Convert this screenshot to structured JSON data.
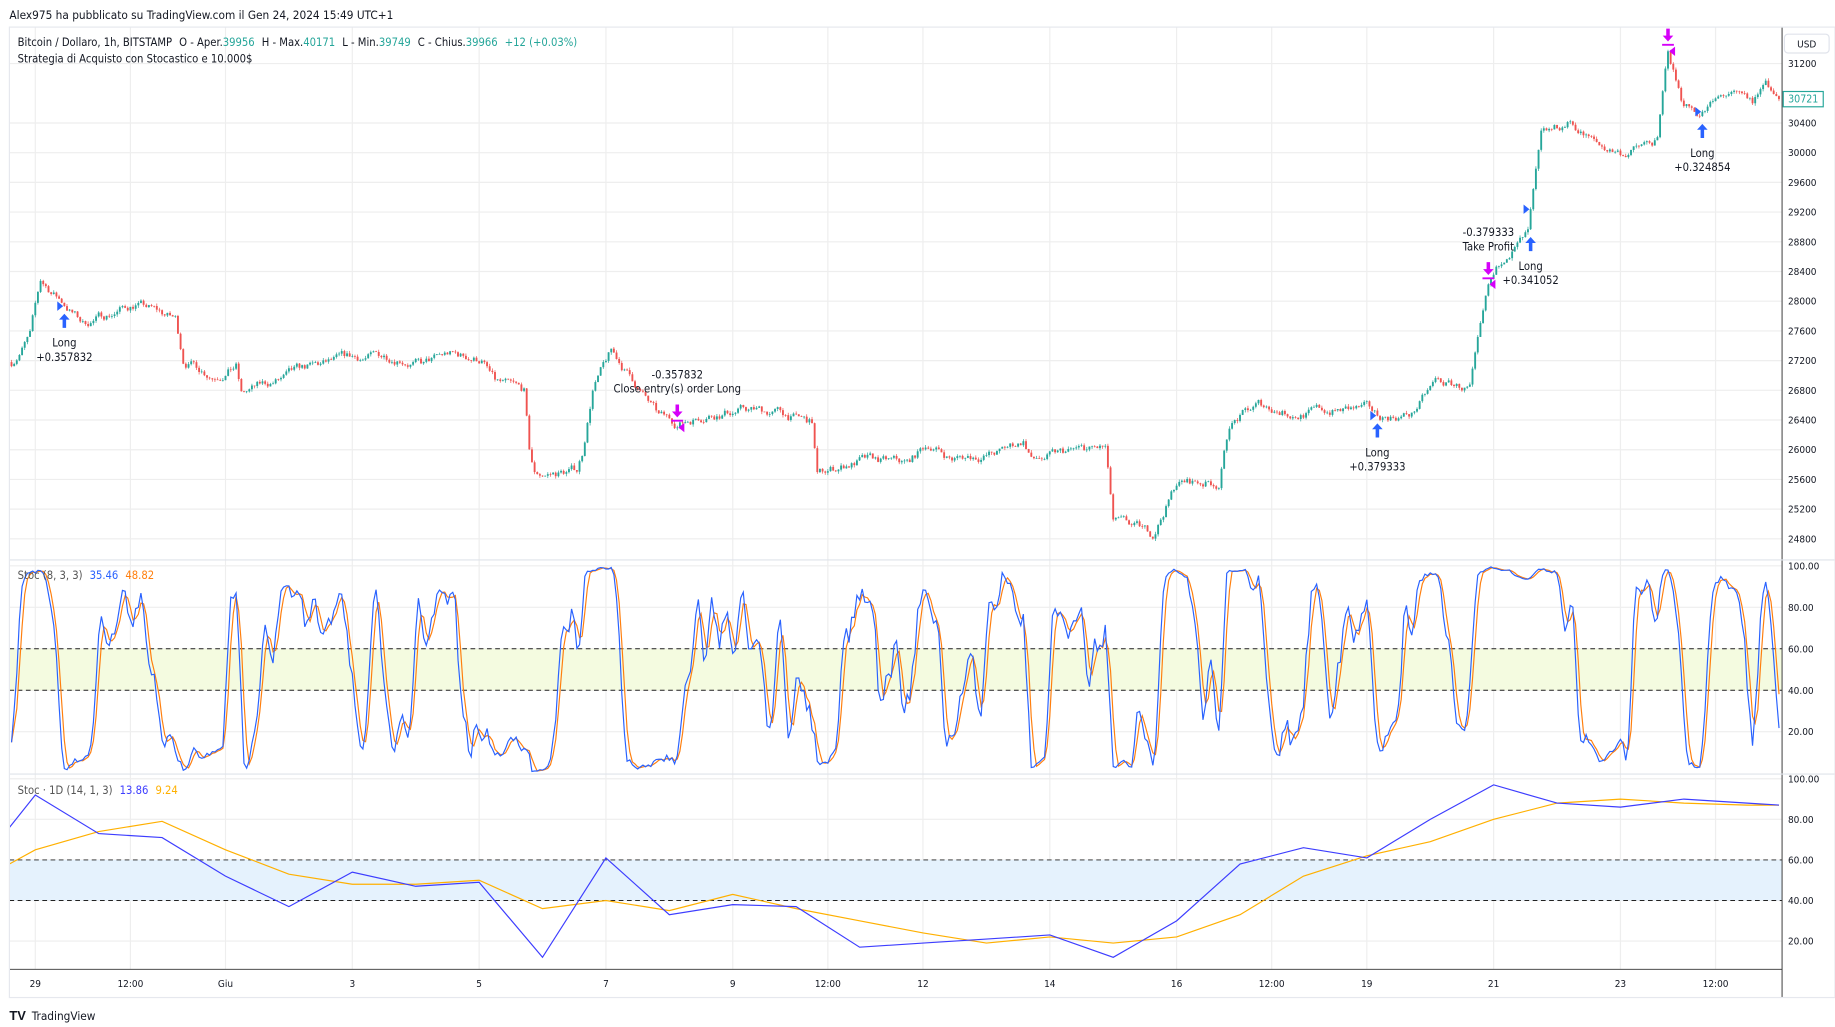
{
  "header": {
    "published": "Alex975 ha pubblicato su TradingView.com il Gen 24, 2024 15:49 UTC+1"
  },
  "legend": {
    "symbol": "Bitcoin / Dollaro, 1h, BITSTAMP",
    "open_label": "O - Aper.",
    "open": "39956",
    "high_label": "H - Max.",
    "high": "40171",
    "low_label": "L - Min.",
    "low": "39749",
    "close_label": "C - Chius.",
    "close": "39966",
    "change": "+12 (+0.03%)",
    "strategy": "Strategia di Acquisto con Stocastico e 10.000$"
  },
  "price_axis": {
    "currency": "USD",
    "last_price": "30721",
    "ticks": [
      "31200",
      "30400",
      "30000",
      "29600",
      "29200",
      "28800",
      "28400",
      "28000",
      "27600",
      "27200",
      "26800",
      "26400",
      "26000",
      "25600",
      "25200",
      "24800"
    ]
  },
  "time_axis": {
    "ticks": [
      {
        "label": "29",
        "time": "05-29 00:00"
      },
      {
        "label": "12:00",
        "time": "05-30 12:00"
      },
      {
        "label": "Giu",
        "time": "06-01 00:00"
      },
      {
        "label": "3",
        "time": "06-03 00:00"
      },
      {
        "label": "5",
        "time": "06-05 00:00"
      },
      {
        "label": "7",
        "time": "06-07 00:00"
      },
      {
        "label": "9",
        "time": "06-09 00:00"
      },
      {
        "label": "12:00",
        "time": "06-10 12:00"
      },
      {
        "label": "12",
        "time": "06-12 00:00"
      },
      {
        "label": "14",
        "time": "06-14 00:00"
      },
      {
        "label": "16",
        "time": "06-16 00:00"
      },
      {
        "label": "12:00",
        "time": "06-17 12:00"
      },
      {
        "label": "19",
        "time": "06-19 00:00"
      },
      {
        "label": "21",
        "time": "06-21 00:00"
      },
      {
        "label": "23",
        "time": "06-23 00:00"
      },
      {
        "label": "12:00",
        "time": "06-24 12:00"
      }
    ]
  },
  "stoch1": {
    "title": "Stoc (8, 3, 3)",
    "k_value": "35.46",
    "d_value": "48.82",
    "ticks": [
      "100.00",
      "80.00",
      "60.00",
      "40.00",
      "20.00"
    ],
    "band": [
      40,
      60
    ]
  },
  "stoch2": {
    "title": "Stoc · 1D (14, 1, 3)",
    "k_value": "13.86",
    "d_value": "9.24",
    "ticks": [
      "100.00",
      "80.00",
      "60.00",
      "40.00",
      "20.00"
    ],
    "band": [
      40,
      60
    ]
  },
  "colors": {
    "up": "#26a69a",
    "down": "#ef5350",
    "k": "#2962ff",
    "d1": "#ff7f0e",
    "k2": "#3d3dff",
    "d2": "#ffb000",
    "band1": "#f4fbe0",
    "band2": "#e5f2fd",
    "long": "#2962ff",
    "exit": "#d500f9",
    "grid": "#eeeeee"
  },
  "footer": {
    "brand": "TradingView"
  },
  "chart_data": [
    {
      "type": "candlestick",
      "title": "Bitcoin / Dollaro, 1h, BITSTAMP",
      "ylim": [
        24600,
        31500
      ],
      "close_path": [
        [
          "05-28 15:00",
          27180
        ],
        [
          "05-28 22:00",
          27540
        ],
        [
          "05-29 02:00",
          28250
        ],
        [
          "05-29 11:00",
          27970
        ],
        [
          "05-29 18:00",
          27700
        ],
        [
          "05-30 14:00",
          27970
        ],
        [
          "05-31 05:00",
          27750
        ],
        [
          "05-31 08:00",
          27220
        ],
        [
          "05-31 19:00",
          27020
        ],
        [
          "06-01 04:00",
          27145
        ],
        [
          "06-01 06:00",
          26750
        ],
        [
          "06-01 22:00",
          26955
        ],
        [
          "06-02 06:00",
          27065
        ],
        [
          "06-03 00:00",
          27220
        ],
        [
          "06-03 18:00",
          27270
        ],
        [
          "06-04 03:00",
          27145
        ],
        [
          "06-04 12:00",
          27270
        ],
        [
          "06-05 01:00",
          27220
        ],
        [
          "06-05 06:00",
          26900
        ],
        [
          "06-05 17:00",
          26750
        ],
        [
          "06-05 19:00",
          25950
        ],
        [
          "06-05 21:00",
          25640
        ],
        [
          "06-06 13:00",
          25720
        ],
        [
          "06-06 15:00",
          25950
        ],
        [
          "06-06 19:00",
          26830
        ],
        [
          "06-07 02:00",
          27300
        ],
        [
          "06-07 11:00",
          26900
        ],
        [
          "06-07 20:00",
          26430
        ],
        [
          "06-08 03:00",
          26350
        ],
        [
          "06-08 14:00",
          26500
        ],
        [
          "06-09 03:00",
          26540
        ],
        [
          "06-09 17:00",
          26500
        ],
        [
          "06-10 06:00",
          26350
        ],
        [
          "06-10 08:00",
          25640
        ],
        [
          "06-10 19:00",
          25800
        ],
        [
          "06-11 00:00",
          25850
        ],
        [
          "06-11 18:00",
          25800
        ],
        [
          "06-12 02:00",
          26070
        ],
        [
          "06-12 11:00",
          25880
        ],
        [
          "06-13 05:00",
          25960
        ],
        [
          "06-13 14:00",
          26120
        ],
        [
          "06-13 18:00",
          25850
        ],
        [
          "06-14 08:00",
          25960
        ],
        [
          "06-14 21:00",
          26005
        ],
        [
          "06-15 00:00",
          25010
        ],
        [
          "06-15 15:00",
          24850
        ],
        [
          "06-16 00:00",
          25560
        ],
        [
          "06-16 16:00",
          25560
        ],
        [
          "06-16 20:00",
          26350
        ],
        [
          "06-17 07:00",
          26590
        ],
        [
          "06-17 20:00",
          26500
        ],
        [
          "06-18 23:00",
          26540
        ],
        [
          "06-19 04:00",
          26430
        ],
        [
          "06-19 17:00",
          26480
        ],
        [
          "06-20 02:00",
          26900
        ],
        [
          "06-20 15:00",
          26820
        ],
        [
          "06-20 22:00",
          28100
        ],
        [
          "06-21 05:00",
          28650
        ],
        [
          "06-21 13:00",
          28890
        ],
        [
          "06-21 18:00",
          30150
        ],
        [
          "06-22 05:00",
          30400
        ],
        [
          "06-22 16:00",
          30080
        ],
        [
          "06-23 01:00",
          30000
        ],
        [
          "06-23 14:00",
          30150
        ],
        [
          "06-23 18:00",
          31340
        ],
        [
          "06-23 23:00",
          30710
        ],
        [
          "06-24 06:00",
          30550
        ],
        [
          "06-24 17:00",
          30790
        ],
        [
          "06-25 02:00",
          30630
        ],
        [
          "06-25 07:00",
          30950
        ],
        [
          "06-25 12:00",
          30721
        ]
      ],
      "signals": [
        {
          "kind": "long",
          "time": "05-29 11:00",
          "label": "Long",
          "value": "+0.357832"
        },
        {
          "kind": "exit",
          "time": "06-08 03:00",
          "label": "Close entry(s) order Long",
          "value": "-0.357832"
        },
        {
          "kind": "long",
          "time": "06-19 04:00",
          "label": "Long",
          "value": "+0.379333"
        },
        {
          "kind": "exit",
          "time": "06-20 22:00",
          "label": "Take Profit",
          "value": "-0.379333"
        },
        {
          "kind": "long",
          "time": "06-21 14:00",
          "label": "Long",
          "value": "+0.341052"
        },
        {
          "kind": "exit",
          "time": "06-23 18:00",
          "label": "",
          "value": ""
        },
        {
          "kind": "long",
          "time": "06-24 07:00",
          "label": "Long",
          "value": "+0.324854"
        }
      ]
    },
    {
      "type": "line",
      "title": "Stoc · 1D (14, 1, 3)",
      "ylim": [
        0,
        100
      ],
      "x": [
        "05-28 12:00",
        "05-29 00:00",
        "05-30 00:00",
        "05-31 00:00",
        "06-01 00:00",
        "06-02 00:00",
        "06-03 00:00",
        "06-04 00:00",
        "06-05 00:00",
        "06-06 00:00",
        "06-07 00:00",
        "06-08 00:00",
        "06-09 00:00",
        "06-10 00:00",
        "06-11 00:00",
        "06-12 00:00",
        "06-13 00:00",
        "06-14 00:00",
        "06-15 00:00",
        "06-16 00:00",
        "06-17 00:00",
        "06-18 00:00",
        "06-19 00:00",
        "06-20 00:00",
        "06-21 00:00",
        "06-22 00:00",
        "06-23 00:00",
        "06-24 00:00",
        "06-25 00:00",
        "06-25 12:00"
      ],
      "series": [
        {
          "name": "%K",
          "values": [
            76,
            92,
            73,
            71,
            52,
            37,
            54,
            47,
            49,
            12,
            61,
            33,
            38,
            37,
            17,
            19,
            21,
            23,
            12,
            30,
            58,
            66,
            61,
            80,
            97,
            88,
            86,
            90,
            88,
            87
          ]
        },
        {
          "name": "%D",
          "values": [
            58,
            65,
            74,
            79,
            65,
            53,
            48,
            48,
            50,
            36,
            40,
            35,
            43,
            36,
            30,
            24,
            19,
            22,
            19,
            22,
            33,
            52,
            62,
            69,
            80,
            88,
            90,
            88,
            87,
            87
          ]
        }
      ]
    }
  ]
}
